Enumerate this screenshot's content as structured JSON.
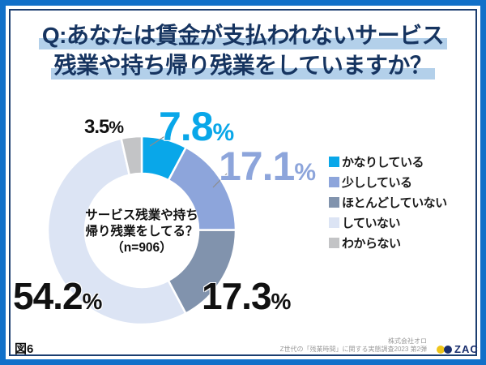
{
  "title": {
    "line1": "Q:あなたは賃金が支払われないサービス",
    "line2": "残業や持ち帰り残業をしていますか？"
  },
  "chart_data": {
    "type": "pie",
    "style": "donut",
    "question": "サービス残業や持ち帰り残業をしてる？",
    "sample_size": "n=906",
    "center_label": {
      "line1": "サービス残業や持ち",
      "line2": "帰り残業をしてる？",
      "line3": "（n=906）"
    },
    "categories": [
      "かなりしている",
      "少ししている",
      "ほとんどしていない",
      "していない",
      "わからない"
    ],
    "values": [
      7.8,
      17.1,
      17.3,
      54.2,
      3.5
    ],
    "colors": [
      "#09A7E9",
      "#8DA5DB",
      "#8193AD",
      "#DCE4F4",
      "#C3C4C6"
    ],
    "start_angle_deg": -90,
    "direction": "clockwise",
    "legend_position": "right",
    "percent_labels": [
      {
        "num": "7.8",
        "suffix": "%"
      },
      {
        "num": "17.1",
        "suffix": "%"
      },
      {
        "num": "17.3",
        "suffix": "%"
      },
      {
        "num": "54.2",
        "suffix": "%"
      },
      {
        "num": "3.5",
        "suffix": "%"
      }
    ]
  },
  "footer": {
    "figure_label": "図6",
    "credit_line1": "株式会社オロ",
    "credit_line2": "Z世代の「残業時間」に関する実態調査2023 第2弾",
    "logo_text": "ZAC"
  },
  "colors": {
    "frame_blue": "#1170C9",
    "frame_navy": "#1C3E70",
    "title_text": "#163460",
    "title_highlight": "#B3D0EA",
    "logo_yellow": "#EFC51A",
    "logo_navy": "#1A2F6E"
  }
}
